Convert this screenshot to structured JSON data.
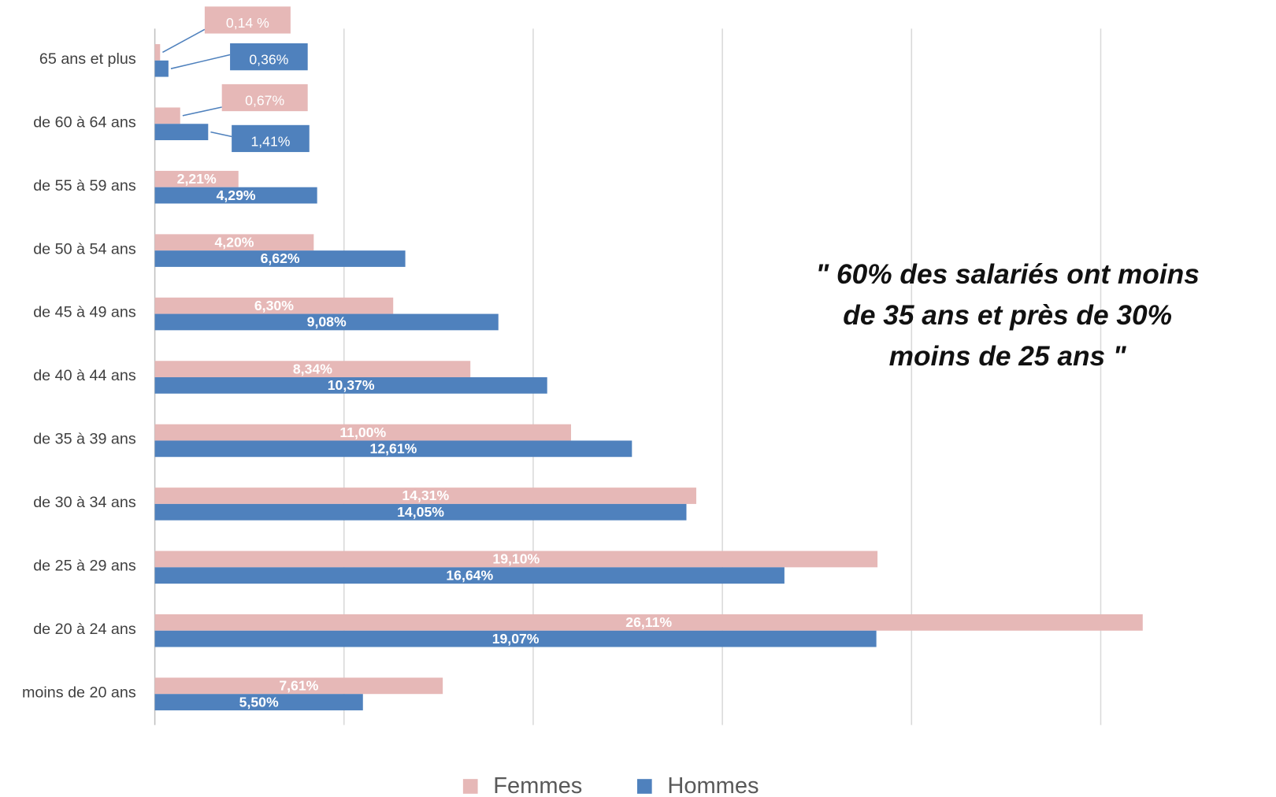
{
  "chart_data": {
    "type": "barh",
    "categories": [
      "65 ans et plus",
      "de 60 à 64 ans",
      "de 55 à 59 ans",
      "de 50 à 54 ans",
      "de 45 à 49 ans",
      "de 40 à 44 ans",
      "de 35 à 39 ans",
      "de 30 à 34 ans",
      "de 25 à 29 ans",
      "de 20 à 24 ans",
      "moins de 20 ans"
    ],
    "series": [
      {
        "name": "Femmes",
        "color": "#e6b8b7",
        "values": [
          0.14,
          0.67,
          2.21,
          4.2,
          6.3,
          8.34,
          11.0,
          14.31,
          19.1,
          26.11,
          7.61
        ],
        "value_labels": [
          "0,14 %",
          "0,67%",
          "2,21%",
          "4,20%",
          "6,30%",
          "8,34%",
          "11,00%",
          "14,31%",
          "19,10%",
          "26,11%",
          "7,61%"
        ]
      },
      {
        "name": "Hommes",
        "color": "#4f81bd",
        "values": [
          0.36,
          1.41,
          4.29,
          6.62,
          9.08,
          10.37,
          12.61,
          14.05,
          16.64,
          19.07,
          5.5
        ],
        "value_labels": [
          "0,36%",
          "1,41%",
          "4,29%",
          "6,62%",
          "9,08%",
          "10,37%",
          "12,61%",
          "14,05%",
          "16,64%",
          "19,07%",
          "5,50%"
        ]
      }
    ],
    "xlim": [
      0,
      25
    ],
    "xticks": [
      0,
      5,
      10,
      15,
      20,
      25
    ],
    "grid": true,
    "annotation": [
      "\" 60% des salariés ont moins",
      "de 35 ans et près de 30%",
      "moins de 25 ans \""
    ],
    "legend": "bottom"
  }
}
